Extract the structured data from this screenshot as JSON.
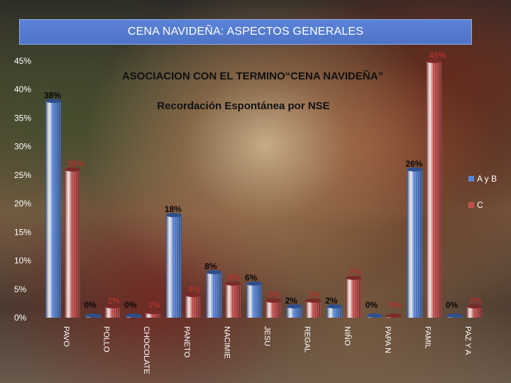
{
  "header": {
    "title": "CENA NAVIDEÑA: ASPECTOS GENERALES"
  },
  "colors": {
    "series_ab": "#5b86d4",
    "series_ab_dark": "#2f4f8a",
    "series_c": "#c0504d",
    "series_c_dark": "#7a2a28",
    "label_ab": "#0a0a0a",
    "label_c": "#b0302c"
  },
  "chart_data": {
    "type": "bar",
    "title": "ASOCIACION CON EL TERMINO“CENA  NAVIDEÑA”",
    "subtitle": "Recordación Espontánea por NSE",
    "categories": [
      "PAVO",
      "POLLO",
      "CHOCOLATE",
      "PANETON",
      "NACIMIENTO",
      "JESUS",
      "REGALOS",
      "NIÑO",
      "PAPA NOEL",
      "FAMILIA",
      "PAZ Y AMOR"
    ],
    "category_labels": [
      "PAVO",
      "POLLO",
      "CHOCOLATE",
      "PANETO",
      "NACIMIE",
      "JESU",
      "REGAL",
      "NIÑO",
      "PAPA N",
      "FAMIL",
      "PAZ Y A"
    ],
    "series": [
      {
        "name": "A y B",
        "values": [
          38,
          0,
          0,
          18,
          8,
          6,
          2,
          2,
          0,
          26,
          0
        ]
      },
      {
        "name": "C",
        "values": [
          26,
          2,
          1,
          4,
          6,
          3,
          3,
          7,
          0,
          45,
          2
        ]
      }
    ],
    "value_labels": {
      "A y B": [
        "38%",
        "0%",
        "0%",
        "18%",
        "8%",
        "6%",
        "2%",
        "2%",
        "0%",
        "26%",
        "0%"
      ],
      "C": [
        "26%",
        "2%",
        "1%",
        "4%",
        "6%",
        "3%",
        "3%",
        "7%",
        "0%",
        "45%",
        "2%"
      ]
    },
    "ylim": [
      0,
      45
    ],
    "yticks": [
      "0%",
      "5%",
      "10%",
      "15%",
      "20%",
      "25%",
      "30%",
      "35%",
      "40%",
      "45%"
    ],
    "legend_position": "right",
    "grid": false
  }
}
